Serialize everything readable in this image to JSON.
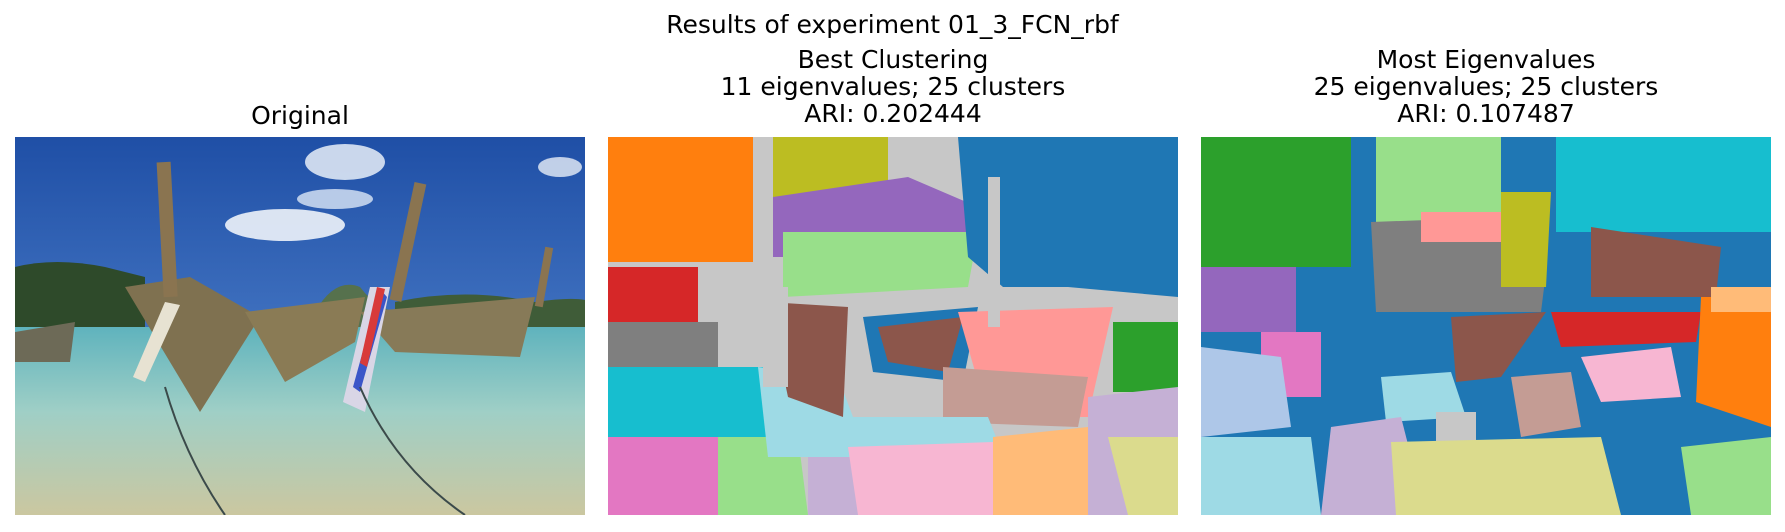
{
  "figure": {
    "suptitle": "Results of experiment 01_3_FCN_rbf"
  },
  "panels": [
    {
      "title_lines": [
        "Original"
      ],
      "kind": "photo"
    },
    {
      "title_lines": [
        "Best Clustering",
        "11 eigenvalues; 25 clusters",
        "ARI: 0.202444"
      ],
      "kind": "segmentation"
    },
    {
      "title_lines": [
        "Most Eigenvalues",
        "25 eigenvalues; 25 clusters",
        "ARI: 0.107487"
      ],
      "kind": "segmentation"
    }
  ],
  "colors": {
    "sky": "#2f63b8",
    "water": "#8cc6c0",
    "sand": "#c9c79a",
    "boat_wood": "#8a7a52",
    "cluster_palette": [
      "#1f77b4",
      "#ff7f0e",
      "#2ca02c",
      "#d62728",
      "#9467bd",
      "#8c564b",
      "#e377c2",
      "#7f7f7f",
      "#bcbd22",
      "#17becf",
      "#aec7e8",
      "#ffbb78",
      "#98df8a",
      "#ff9896",
      "#c5b0d5",
      "#c49c94",
      "#f7b6d2",
      "#c7c7c7",
      "#dbdb8d",
      "#9edae5"
    ]
  }
}
